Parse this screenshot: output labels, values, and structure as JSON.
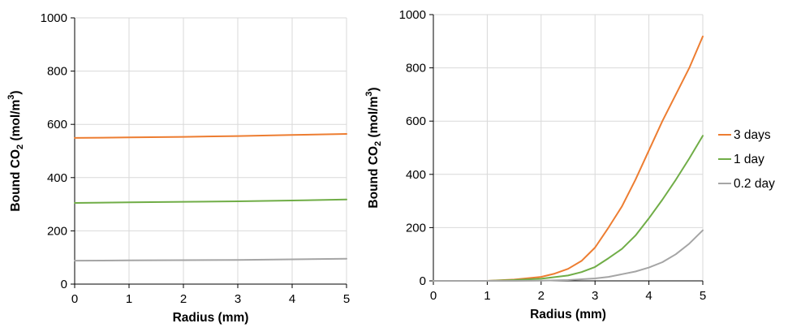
{
  "chart_data": [
    {
      "type": "line",
      "title": "",
      "xlabel": "Radius (mm)",
      "ylabel": "Bound CO₂ (mol/m³)",
      "ylabel_main": "Bound CO",
      "ylabel_sub": "2",
      "ylabel_tail": " (mol/m",
      "ylabel_sup": "3",
      "ylabel_close": ")",
      "xlim": [
        0,
        5
      ],
      "ylim": [
        0,
        1000
      ],
      "xticks": [
        0,
        1,
        2,
        3,
        4,
        5
      ],
      "yticks": [
        0,
        200,
        400,
        600,
        800,
        1000
      ],
      "xtick_labels": [
        "0",
        "1",
        "2",
        "3",
        "4",
        "5"
      ],
      "ytick_labels": [
        "0",
        "200",
        "400",
        "600",
        "800",
        "1000"
      ],
      "grid": true,
      "legend": "none",
      "series": [
        {
          "name": "3 days",
          "color": "#ed7d31",
          "x": [
            0,
            1,
            2,
            3,
            4,
            5
          ],
          "y": [
            549,
            551,
            553,
            556,
            560,
            564
          ]
        },
        {
          "name": "1 day",
          "color": "#70ad47",
          "x": [
            0,
            1,
            2,
            3,
            4,
            5
          ],
          "y": [
            305,
            307,
            309,
            311,
            314,
            318
          ]
        },
        {
          "name": "0.2 day",
          "color": "#a5a5a5",
          "x": [
            0,
            1,
            2,
            3,
            4,
            5
          ],
          "y": [
            88,
            89,
            90,
            91,
            93,
            95
          ]
        }
      ]
    },
    {
      "type": "line",
      "title": "",
      "xlabel": "Radius (mm)",
      "ylabel": "Bound CO₂ (mol/m³)",
      "ylabel_main": "Bound CO",
      "ylabel_sub": "2",
      "ylabel_tail": " (mol/m",
      "ylabel_sup": "3",
      "ylabel_close": ")",
      "xlim": [
        0,
        5
      ],
      "ylim": [
        0,
        1000
      ],
      "xticks": [
        0,
        1,
        2,
        3,
        4,
        5
      ],
      "yticks": [
        0,
        200,
        400,
        600,
        800,
        1000
      ],
      "xtick_labels": [
        "0",
        "1",
        "2",
        "3",
        "4",
        "5"
      ],
      "ytick_labels": [
        "0",
        "200",
        "400",
        "600",
        "800",
        "1000"
      ],
      "grid": true,
      "legend": "right",
      "series": [
        {
          "name": "3 days",
          "color": "#ed7d31",
          "x": [
            0,
            1,
            1.5,
            2,
            2.25,
            2.5,
            2.75,
            3,
            3.25,
            3.5,
            3.75,
            4,
            4.25,
            4.5,
            4.75,
            5
          ],
          "y": [
            0,
            0,
            5,
            15,
            27,
            45,
            75,
            125,
            200,
            280,
            380,
            490,
            600,
            700,
            800,
            918
          ]
        },
        {
          "name": "1 day",
          "color": "#70ad47",
          "x": [
            0,
            1,
            1.5,
            2,
            2.5,
            2.75,
            3,
            3.25,
            3.5,
            3.75,
            4,
            4.25,
            4.5,
            4.75,
            5
          ],
          "y": [
            0,
            0,
            3,
            8,
            20,
            33,
            52,
            85,
            120,
            170,
            235,
            305,
            380,
            460,
            545
          ]
        },
        {
          "name": "0.2 day",
          "color": "#a5a5a5",
          "x": [
            0,
            1.5,
            2,
            2.5,
            3,
            3.25,
            3.5,
            3.75,
            4,
            4.25,
            4.5,
            4.75,
            5
          ],
          "y": [
            0,
            0,
            1,
            3,
            9,
            15,
            25,
            35,
            50,
            70,
            100,
            140,
            190
          ]
        }
      ]
    }
  ]
}
